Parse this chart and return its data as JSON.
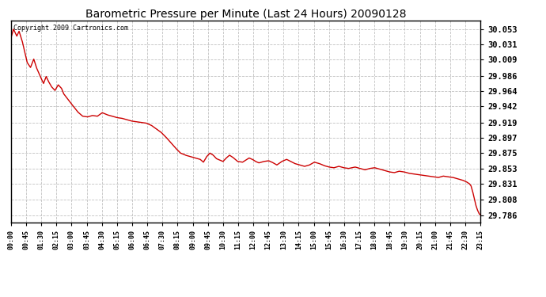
{
  "title": "Barometric Pressure per Minute (Last 24 Hours) 20090128",
  "copyright_text": "Copyright 2009 Cartronics.com",
  "line_color": "#cc0000",
  "bg_color": "#ffffff",
  "grid_color": "#bbbbbb",
  "yticks": [
    29.786,
    29.808,
    29.831,
    29.853,
    29.875,
    29.897,
    29.919,
    29.942,
    29.964,
    29.986,
    30.009,
    30.031,
    30.053
  ],
  "ylim": [
    29.775,
    30.065
  ],
  "xtick_labels": [
    "00:00",
    "00:45",
    "01:30",
    "02:15",
    "03:00",
    "03:45",
    "04:30",
    "05:15",
    "06:00",
    "06:45",
    "07:30",
    "08:15",
    "09:00",
    "09:45",
    "10:30",
    "11:15",
    "12:00",
    "12:45",
    "13:30",
    "14:15",
    "15:00",
    "15:45",
    "16:30",
    "17:15",
    "18:00",
    "18:45",
    "19:30",
    "20:15",
    "21:00",
    "21:45",
    "22:30",
    "23:15"
  ],
  "key_points": [
    [
      0,
      30.04
    ],
    [
      8,
      30.053
    ],
    [
      18,
      30.043
    ],
    [
      25,
      30.05
    ],
    [
      35,
      30.035
    ],
    [
      50,
      30.005
    ],
    [
      60,
      29.998
    ],
    [
      70,
      30.01
    ],
    [
      78,
      29.998
    ],
    [
      90,
      29.985
    ],
    [
      100,
      29.975
    ],
    [
      108,
      29.985
    ],
    [
      115,
      29.978
    ],
    [
      125,
      29.97
    ],
    [
      135,
      29.965
    ],
    [
      145,
      29.973
    ],
    [
      155,
      29.968
    ],
    [
      162,
      29.96
    ],
    [
      175,
      29.952
    ],
    [
      190,
      29.943
    ],
    [
      205,
      29.934
    ],
    [
      220,
      29.928
    ],
    [
      235,
      29.927
    ],
    [
      250,
      29.929
    ],
    [
      265,
      29.928
    ],
    [
      280,
      29.933
    ],
    [
      295,
      29.93
    ],
    [
      310,
      29.928
    ],
    [
      325,
      29.926
    ],
    [
      340,
      29.925
    ],
    [
      355,
      29.923
    ],
    [
      370,
      29.921
    ],
    [
      385,
      29.92
    ],
    [
      400,
      29.919
    ],
    [
      415,
      29.918
    ],
    [
      430,
      29.915
    ],
    [
      445,
      29.91
    ],
    [
      460,
      29.905
    ],
    [
      475,
      29.898
    ],
    [
      490,
      29.89
    ],
    [
      505,
      29.882
    ],
    [
      520,
      29.875
    ],
    [
      535,
      29.872
    ],
    [
      550,
      29.87
    ],
    [
      565,
      29.868
    ],
    [
      580,
      29.866
    ],
    [
      590,
      29.862
    ],
    [
      600,
      29.87
    ],
    [
      610,
      29.875
    ],
    [
      620,
      29.872
    ],
    [
      630,
      29.867
    ],
    [
      640,
      29.865
    ],
    [
      650,
      29.863
    ],
    [
      660,
      29.868
    ],
    [
      670,
      29.872
    ],
    [
      680,
      29.869
    ],
    [
      695,
      29.863
    ],
    [
      710,
      29.862
    ],
    [
      720,
      29.865
    ],
    [
      730,
      29.868
    ],
    [
      740,
      29.866
    ],
    [
      750,
      29.863
    ],
    [
      760,
      29.861
    ],
    [
      775,
      29.863
    ],
    [
      790,
      29.864
    ],
    [
      800,
      29.862
    ],
    [
      815,
      29.858
    ],
    [
      830,
      29.863
    ],
    [
      845,
      29.866
    ],
    [
      858,
      29.863
    ],
    [
      870,
      29.86
    ],
    [
      885,
      29.858
    ],
    [
      900,
      29.856
    ],
    [
      915,
      29.858
    ],
    [
      930,
      29.862
    ],
    [
      945,
      29.86
    ],
    [
      960,
      29.857
    ],
    [
      975,
      29.855
    ],
    [
      990,
      29.854
    ],
    [
      1005,
      29.856
    ],
    [
      1020,
      29.854
    ],
    [
      1035,
      29.853
    ],
    [
      1055,
      29.855
    ],
    [
      1070,
      29.853
    ],
    [
      1085,
      29.851
    ],
    [
      1100,
      29.853
    ],
    [
      1115,
      29.854
    ],
    [
      1130,
      29.852
    ],
    [
      1145,
      29.85
    ],
    [
      1160,
      29.848
    ],
    [
      1175,
      29.847
    ],
    [
      1190,
      29.849
    ],
    [
      1205,
      29.848
    ],
    [
      1220,
      29.846
    ],
    [
      1235,
      29.845
    ],
    [
      1250,
      29.844
    ],
    [
      1265,
      29.843
    ],
    [
      1280,
      29.842
    ],
    [
      1295,
      29.841
    ],
    [
      1310,
      29.84
    ],
    [
      1325,
      29.842
    ],
    [
      1340,
      29.841
    ],
    [
      1355,
      29.84
    ],
    [
      1370,
      29.838
    ],
    [
      1385,
      29.836
    ],
    [
      1395,
      29.834
    ],
    [
      1405,
      29.831
    ],
    [
      1410,
      29.828
    ],
    [
      1415,
      29.82
    ],
    [
      1420,
      29.81
    ],
    [
      1425,
      29.8
    ],
    [
      1430,
      29.793
    ],
    [
      1435,
      29.788
    ],
    [
      1439,
      29.786
    ]
  ]
}
